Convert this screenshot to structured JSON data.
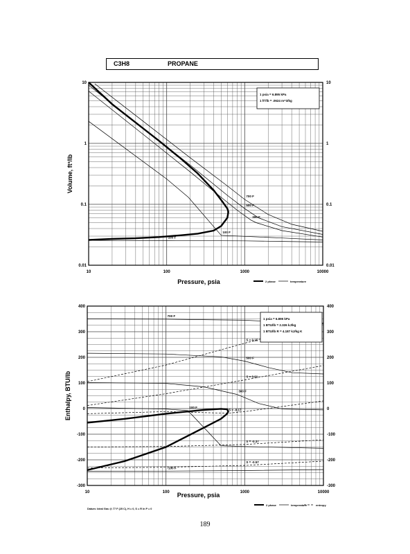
{
  "header": {
    "formula": "C3H8",
    "name": "PROPANE"
  },
  "page_number": "189",
  "colors": {
    "ink": "#000000",
    "grid": "#444444",
    "legend_box": "#ffffff"
  },
  "chart_data": [
    {
      "type": "line",
      "scale_x": "log",
      "scale_y": "log",
      "xlabel": "Pressure, psia",
      "ylabel": "Volume, ft^3/lb",
      "xlim": [
        10,
        10000
      ],
      "ylim": [
        0.01,
        10
      ],
      "x_ticks": [
        "10",
        "100",
        "1000",
        "10000"
      ],
      "y_ticks_left": [
        "10",
        "1",
        "0.1",
        "0.01"
      ],
      "y_ticks_right": [
        "10",
        "1",
        "0.1",
        "0.01"
      ],
      "grid": true,
      "legend": {
        "position": "bottom-right",
        "items": [
          "2 phase",
          "temperature"
        ]
      },
      "conversion_box": [
        "1 psia = 6.895 kPa",
        "1 ft^3/lb = .0624 m^3/kg"
      ],
      "series": [
        {
          "kind": "2 phase",
          "x": [
            10,
            20,
            40,
            80,
            150,
            250,
            400,
            520,
            600,
            617,
            600,
            500,
            400,
            250,
            150,
            80,
            40,
            20,
            10
          ],
          "y": [
            10,
            4.4,
            2.2,
            1.1,
            0.57,
            0.32,
            0.17,
            0.11,
            0.085,
            0.075,
            0.06,
            0.044,
            0.037,
            0.033,
            0.031,
            0.029,
            0.0277,
            0.027,
            0.026
          ]
        },
        {
          "kind": "temperature",
          "name": "700 F",
          "x": [
            12,
            50,
            200,
            600,
            1000,
            2000,
            4000,
            10000
          ],
          "y": [
            9.5,
            2.3,
            0.58,
            0.2,
            0.12,
            0.068,
            0.047,
            0.036
          ]
        },
        {
          "kind": "temperature",
          "name": "500 F",
          "x": [
            10,
            50,
            200,
            600,
            1000,
            1500,
            3000,
            10000
          ],
          "y": [
            9,
            1.75,
            0.44,
            0.14,
            0.085,
            0.06,
            0.043,
            0.032
          ]
        },
        {
          "kind": "temperature",
          "name": "300 F",
          "x": [
            10,
            50,
            200,
            500,
            800,
            1200,
            1400,
            3000,
            10000
          ],
          "y": [
            7.2,
            1.4,
            0.34,
            0.13,
            0.08,
            0.055,
            0.05,
            0.037,
            0.029
          ]
        },
        {
          "kind": "temperature",
          "name": "100 F",
          "x": [
            10,
            100,
            190,
            500,
            1000,
            3000,
            10000
          ],
          "y": [
            2.3,
            0.26,
            0.13,
            0.031,
            0.0298,
            0.028,
            0.026
          ]
        },
        {
          "kind": "temperature",
          "name": "100 F",
          "x": [
            10,
            100,
            1000,
            3000,
            10000
          ],
          "y": [
            0.0255,
            0.0254,
            0.0251,
            0.0246,
            0.024
          ]
        }
      ]
    },
    {
      "type": "line",
      "scale_x": "log",
      "xlabel": "Pressure, psia",
      "ylabel": "Enthalpy, BTU/lb",
      "xlim": [
        10,
        10000
      ],
      "ylim": [
        -300,
        400
      ],
      "x_ticks": [
        "10",
        "100",
        "1000",
        "10000"
      ],
      "y_ticks_left": [
        "400",
        "300",
        "200",
        "100",
        "0",
        "-100",
        "-200",
        "-300"
      ],
      "y_ticks_right": [
        "400",
        "300",
        "200",
        "100",
        "0",
        "-100",
        "-200",
        "-300"
      ],
      "grid": true,
      "legend": {
        "position": "bottom-right",
        "items": [
          "2 phase",
          "temperature",
          "entropy"
        ]
      },
      "conversion_box": [
        "1 psia = 6.895 kPa",
        "1 BTU/lb = 2.326 kJ/kg",
        "1 BTU/lb R = 4.187 kJ/kg K"
      ],
      "datum_note": "Datum: Ideal Gas @ 77 F (25 C), H = 0, S = R ln P = 0",
      "series": [
        {
          "kind": "2 phase",
          "x": [
            10,
            30,
            100,
            300,
            500,
            600,
            617,
            600,
            500,
            300,
            100,
            30,
            10
          ],
          "y": [
            -55,
            -40,
            -20,
            -5,
            -1,
            -3,
            -12,
            -20,
            -40,
            -75,
            -150,
            -205,
            -240
          ]
        },
        {
          "kind": "temperature",
          "name": "700 F",
          "x": [
            10,
            100,
            1000,
            10000
          ],
          "y": [
            350,
            349,
            345,
            330
          ]
        },
        {
          "kind": "temperature",
          "name": "500 F",
          "x": [
            10,
            100,
            500,
            1000,
            2000,
            4000,
            10000
          ],
          "y": [
            216,
            213,
            202,
            185,
            160,
            140,
            135
          ]
        },
        {
          "kind": "temperature",
          "name": "300 F",
          "x": [
            10,
            100,
            300,
            800,
            1500,
            3000,
            10000
          ],
          "y": [
            102,
            98,
            85,
            55,
            20,
            -2,
            -5
          ]
        },
        {
          "kind": "temperature",
          "name": "100 F",
          "x": [
            10,
            100,
            190,
            500,
            1000,
            10000
          ],
          "y": [
            4,
            -2,
            -8,
            -145,
            -148,
            -155
          ]
        },
        {
          "kind": "temperature",
          "name": "-100 F",
          "x": [
            10,
            100,
            1000,
            10000
          ],
          "y": [
            -245,
            -244,
            -242,
            -238
          ]
        },
        {
          "kind": "entropy",
          "name": "S = 0.15",
          "x": [
            10,
            100,
            1000,
            10000
          ],
          "y": [
            105,
            170,
            255,
            335
          ]
        },
        {
          "kind": "entropy",
          "name": "S = 0.01",
          "x": [
            10,
            100,
            1000,
            10000
          ],
          "y": [
            12,
            58,
            112,
            168
          ]
        },
        {
          "kind": "entropy",
          "name": "S = -0.17",
          "x": [
            10,
            100,
            600,
            1000,
            10000
          ],
          "y": [
            -20,
            -12,
            -18,
            -12,
            30
          ]
        },
        {
          "kind": "entropy",
          "name": "S = -0.37",
          "x": [
            10,
            100,
            1000,
            10000
          ],
          "y": [
            -150,
            -148,
            -140,
            -122
          ]
        },
        {
          "kind": "entropy",
          "name": "S = -0.57",
          "x": [
            10,
            100,
            1000,
            10000
          ],
          "y": [
            -232,
            -229,
            -222,
            -205
          ]
        }
      ]
    }
  ]
}
